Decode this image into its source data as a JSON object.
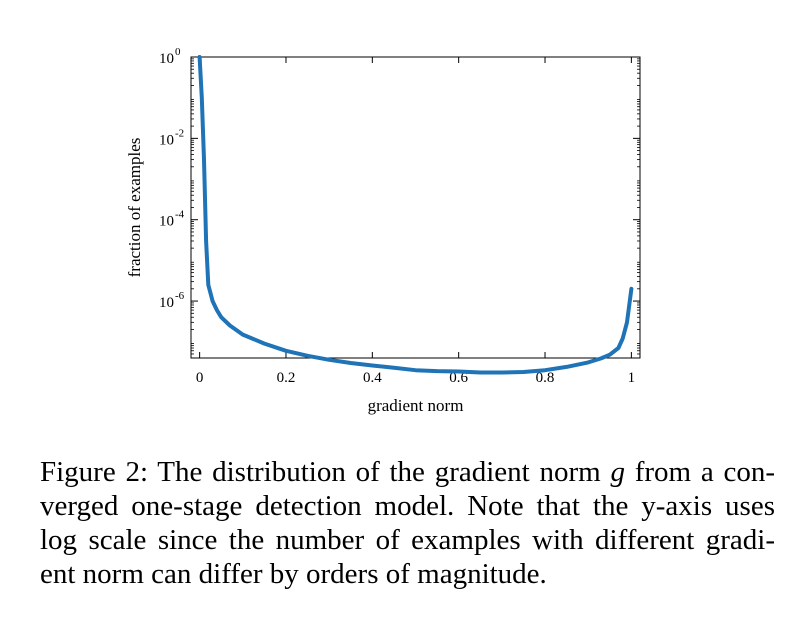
{
  "chart_data": {
    "type": "line",
    "xlabel": "gradient norm",
    "ylabel": "fraction of examples",
    "xlim": [
      -0.02,
      1.02
    ],
    "ylim_log10": [
      -7.4,
      0
    ],
    "y_scale": "log",
    "grid": false,
    "x_ticks": [
      {
        "value": 0,
        "label": "0"
      },
      {
        "value": 0.2,
        "label": "0.2"
      },
      {
        "value": 0.4,
        "label": "0.4"
      },
      {
        "value": 0.6,
        "label": "0.6"
      },
      {
        "value": 0.8,
        "label": "0.8"
      },
      {
        "value": 1,
        "label": "1"
      }
    ],
    "y_ticks": [
      {
        "exp": 0,
        "base": "10",
        "power": "0"
      },
      {
        "exp": -2,
        "base": "10",
        "power": "-2"
      },
      {
        "exp": -4,
        "base": "10",
        "power": "-4"
      },
      {
        "exp": -6,
        "base": "10",
        "power": "-6"
      }
    ],
    "series": [
      {
        "color": "#1f73b7",
        "x": [
          0.0,
          0.005,
          0.01,
          0.015,
          0.02,
          0.03,
          0.04,
          0.05,
          0.07,
          0.1,
          0.15,
          0.2,
          0.25,
          0.3,
          0.35,
          0.4,
          0.45,
          0.5,
          0.55,
          0.6,
          0.65,
          0.7,
          0.75,
          0.8,
          0.85,
          0.9,
          0.93,
          0.95,
          0.97,
          0.98,
          0.99,
          1.0
        ],
        "y": [
          1.0,
          0.1,
          0.003,
          3e-05,
          2.5e-06,
          1e-06,
          6e-07,
          4e-07,
          2.5e-07,
          1.5e-07,
          9e-08,
          6e-08,
          4.5e-08,
          3.6e-08,
          3e-08,
          2.6e-08,
          2.3e-08,
          2e-08,
          1.9e-08,
          1.85e-08,
          1.75e-08,
          1.75e-08,
          1.8e-08,
          2e-08,
          2.4e-08,
          3.1e-08,
          3.9e-08,
          4.8e-08,
          7e-08,
          1.2e-07,
          3e-07,
          2e-06
        ]
      }
    ]
  },
  "caption": {
    "line1_pre": "Figure 2: The distribution of the gradient norm ",
    "line1_var": "g",
    "line1_post": " from a con-",
    "line2": "verged one-stage detection model. Note that the y-axis uses",
    "line3": "log scale since the number of examples with different gradi-",
    "line4": "ent norm can differ by orders of magnitude."
  }
}
